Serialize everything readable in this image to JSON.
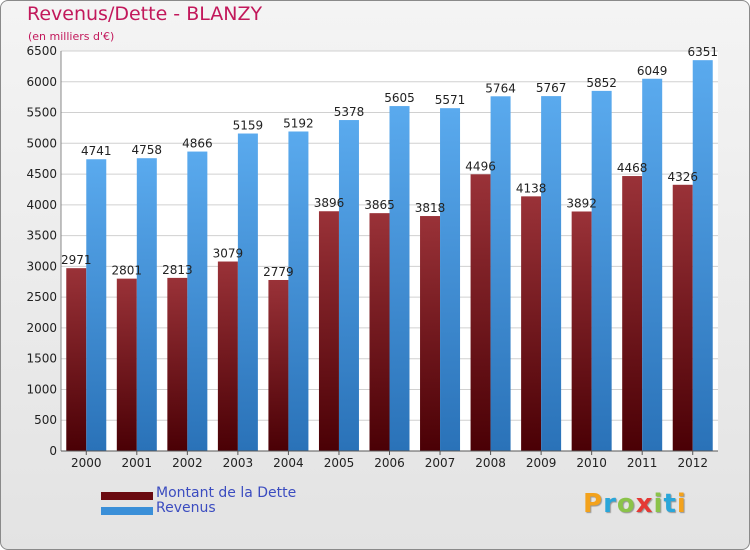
{
  "header": {
    "title": "Revenus/Dette - BLANZY",
    "subtitle": "(en milliers d'€)"
  },
  "chart_data": {
    "type": "bar",
    "categories": [
      "2000",
      "2001",
      "2002",
      "2003",
      "2004",
      "2005",
      "2006",
      "2007",
      "2008",
      "2009",
      "2010",
      "2011",
      "2012"
    ],
    "series": [
      {
        "name": "Montant de la Dette",
        "color": "#7a0d14",
        "values": [
          2971,
          2801,
          2813,
          3079,
          2779,
          3896,
          3865,
          3818,
          4496,
          4138,
          3892,
          4468,
          4326
        ],
        "labels": [
          "2971",
          "2801",
          "2813",
          "3079",
          "2779",
          "3896",
          "3865",
          "3818",
          "4496",
          "4138",
          "3892",
          "4468",
          "4326"
        ]
      },
      {
        "name": "Revenus",
        "color": "#3a8fd8",
        "values": [
          4741,
          4758,
          4866,
          5159,
          5192,
          5378,
          5605,
          5571,
          5764,
          5767,
          5852,
          6049,
          6351
        ],
        "labels": [
          "4741",
          "4758",
          "4866",
          "5159",
          "5192",
          "5378",
          "5605",
          "5571",
          "5764",
          "5767",
          "5852",
          "6049",
          "6351"
        ]
      }
    ],
    "ylim": [
      0,
      6500
    ],
    "yticks": [
      0,
      500,
      1000,
      1500,
      2000,
      2500,
      3000,
      3500,
      4000,
      4500,
      5000,
      5500,
      6000,
      6500
    ],
    "grid": true,
    "legend": "bottom-left"
  },
  "legend": {
    "items": [
      {
        "label": "Montant de la Dette",
        "color": "#6a0a10"
      },
      {
        "label": "Revenus",
        "color": "#3a8fd8"
      }
    ]
  },
  "logo": {
    "letters": [
      "P",
      "r",
      "o",
      "x",
      "i",
      "t",
      "i"
    ],
    "colors": [
      "#f3a21c",
      "#2aa6d9",
      "#8bc34a",
      "#e53935",
      "#8bc34a",
      "#2aa6d9",
      "#f3a21c"
    ]
  }
}
